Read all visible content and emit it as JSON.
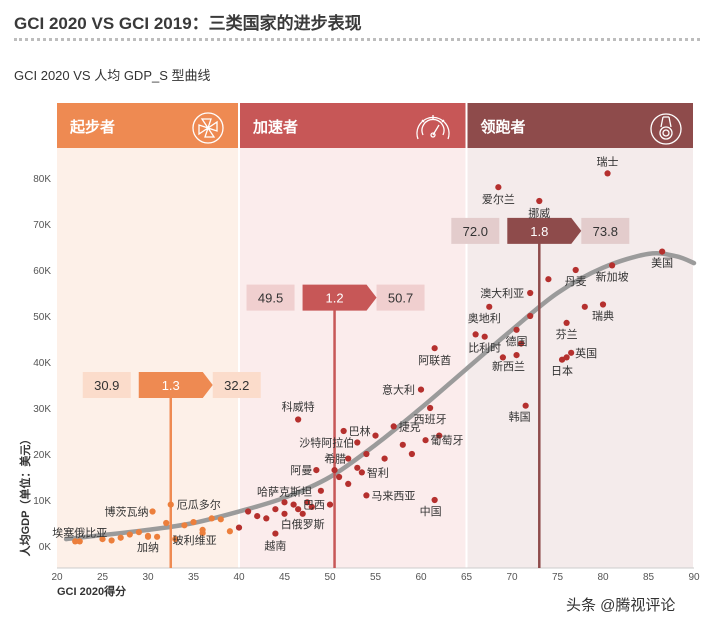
{
  "page": {
    "title": "GCI 2020 VS GCI 2019：三类国家的进步表现",
    "subtitle": "GCI 2020 VS 人均 GDP_S 型曲线",
    "watermark": "头条 @腾视评论"
  },
  "colors": {
    "stage1": "#ee8a52",
    "stage2": "#c75757",
    "stage3": "#8e4b4b",
    "stage1_bg": "#fdf0e8",
    "stage2_bg": "#fbecec",
    "stage3_bg": "#f4ebeb",
    "curve": "#9b9b9b",
    "dot_orange": "#ec7f3c",
    "dot_red": "#b5302e"
  },
  "chart_data": {
    "type": "scatter",
    "xlabel": "GCI 2020得分",
    "ylabel": "人均GDP（单位：美元）",
    "xlim": [
      20,
      90
    ],
    "ylim": [
      0,
      80000
    ],
    "xticks": [
      20,
      25,
      30,
      35,
      40,
      45,
      50,
      55,
      60,
      65,
      70,
      75,
      80,
      85,
      90
    ],
    "yticks": [
      0,
      10000,
      20000,
      30000,
      40000,
      50000,
      60000,
      70000,
      80000
    ],
    "ytick_labels": [
      "0K",
      "10K",
      "20K",
      "30K",
      "40K",
      "50K",
      "60K",
      "70K",
      "80K"
    ],
    "stages": [
      {
        "name": "起步者",
        "x_range": [
          20,
          40
        ],
        "marker_x": 32.5,
        "marker_y": 35000,
        "gci_2019": "30.9",
        "change": "1.3",
        "gci_2020": "32.2"
      },
      {
        "name": "加速者",
        "x_range": [
          40,
          65
        ],
        "marker_x": 50.5,
        "marker_y": 54000,
        "gci_2019": "49.5",
        "change": "1.2",
        "gci_2020": "50.7"
      },
      {
        "name": "领跑者",
        "x_range": [
          65,
          90
        ],
        "marker_x": 73,
        "marker_y": 68500,
        "gci_2019": "72.0",
        "change": "1.8",
        "gci_2020": "73.8"
      }
    ],
    "curve": [
      [
        21,
        1500
      ],
      [
        30,
        3500
      ],
      [
        35,
        5000
      ],
      [
        40,
        7500
      ],
      [
        45,
        10500
      ],
      [
        50,
        15000
      ],
      [
        55,
        22000
      ],
      [
        60,
        30000
      ],
      [
        65,
        38500
      ],
      [
        70,
        47000
      ],
      [
        75,
        55000
      ],
      [
        80,
        60500
      ],
      [
        85,
        63500
      ],
      [
        88,
        63000
      ],
      [
        90,
        61500
      ]
    ],
    "labeled_points": [
      {
        "name": "瑞士",
        "x": 80.5,
        "y": 81000
      },
      {
        "name": "爱尔兰",
        "x": 68.5,
        "y": 78000
      },
      {
        "name": "挪威",
        "x": 73,
        "y": 75000
      },
      {
        "name": "美国",
        "x": 86.5,
        "y": 64000
      },
      {
        "name": "新加坡",
        "x": 81,
        "y": 61000
      },
      {
        "name": "丹麦",
        "x": 77,
        "y": 60000
      },
      {
        "name": "澳大利亚",
        "x": 72,
        "y": 55000
      },
      {
        "name": "瑞典",
        "x": 80,
        "y": 52500
      },
      {
        "name": "奥地利",
        "x": 67.5,
        "y": 52000
      },
      {
        "name": "芬兰",
        "x": 76,
        "y": 48500
      },
      {
        "name": "德国",
        "x": 70.5,
        "y": 47000
      },
      {
        "name": "比利时",
        "x": 67,
        "y": 45500
      },
      {
        "name": "英国",
        "x": 76.5,
        "y": 42000
      },
      {
        "name": "新西兰",
        "x": 70.5,
        "y": 41500
      },
      {
        "name": "日本",
        "x": 75.5,
        "y": 40500
      },
      {
        "name": "阿联酋",
        "x": 61.5,
        "y": 43000
      },
      {
        "name": "意大利",
        "x": 60,
        "y": 34000
      },
      {
        "name": "西班牙",
        "x": 61,
        "y": 30000
      },
      {
        "name": "韩国",
        "x": 71.5,
        "y": 30500
      },
      {
        "name": "科威特",
        "x": 46.5,
        "y": 27500
      },
      {
        "name": "巴林",
        "x": 51.5,
        "y": 25000
      },
      {
        "name": "捷克",
        "x": 57,
        "y": 26000
      },
      {
        "name": "沙特阿拉伯",
        "x": 53,
        "y": 22500
      },
      {
        "name": "葡萄牙",
        "x": 60.5,
        "y": 23000
      },
      {
        "name": "希腊",
        "x": 52,
        "y": 19000
      },
      {
        "name": "阿曼",
        "x": 48.5,
        "y": 16500
      },
      {
        "name": "智利",
        "x": 53.5,
        "y": 16000
      },
      {
        "name": "哈萨克斯坦",
        "x": 45,
        "y": 9500
      },
      {
        "name": "马来西亚",
        "x": 54,
        "y": 11000
      },
      {
        "name": "巴西",
        "x": 50,
        "y": 9000
      },
      {
        "name": "白俄罗斯",
        "x": 47,
        "y": 7000
      },
      {
        "name": "中国",
        "x": 61.5,
        "y": 10000
      },
      {
        "name": "越南",
        "x": 44,
        "y": 2700
      },
      {
        "name": "厄瓜多尔",
        "x": 32.5,
        "y": 9000
      },
      {
        "name": "博茨瓦纳",
        "x": 30.5,
        "y": 7500
      },
      {
        "name": "埃塞俄比亚",
        "x": 22.5,
        "y": 1000
      },
      {
        "name": "加纳",
        "x": 30,
        "y": 2000
      },
      {
        "name": "玻利维亚",
        "x": 36,
        "y": 3500
      }
    ],
    "other_points": [
      [
        22,
        1000
      ],
      [
        25,
        1500
      ],
      [
        26,
        1200
      ],
      [
        27,
        1800
      ],
      [
        28,
        2500
      ],
      [
        29,
        3000
      ],
      [
        30,
        2200
      ],
      [
        31,
        2000
      ],
      [
        32,
        5000
      ],
      [
        33,
        1500
      ],
      [
        34,
        4500
      ],
      [
        35,
        5200
      ],
      [
        36,
        2800
      ],
      [
        37,
        6000
      ],
      [
        38,
        5800
      ],
      [
        39,
        3200
      ],
      [
        40,
        4000
      ],
      [
        41,
        7500
      ],
      [
        42,
        6500
      ],
      [
        43,
        6000
      ],
      [
        44,
        8000
      ],
      [
        45,
        7000
      ],
      [
        46,
        9000
      ],
      [
        46.5,
        8000
      ],
      [
        47.5,
        9500
      ],
      [
        48,
        8500
      ],
      [
        49,
        12000
      ],
      [
        50.5,
        16500
      ],
      [
        51,
        15000
      ],
      [
        52,
        13500
      ],
      [
        53,
        17000
      ],
      [
        54,
        20000
      ],
      [
        55,
        24000
      ],
      [
        56,
        19000
      ],
      [
        58,
        22000
      ],
      [
        59,
        20000
      ],
      [
        62,
        24000
      ],
      [
        66,
        46000
      ],
      [
        69,
        41000
      ],
      [
        71,
        44000
      ],
      [
        72,
        50000
      ],
      [
        74,
        58000
      ],
      [
        76,
        41000
      ],
      [
        78,
        52000
      ]
    ]
  }
}
